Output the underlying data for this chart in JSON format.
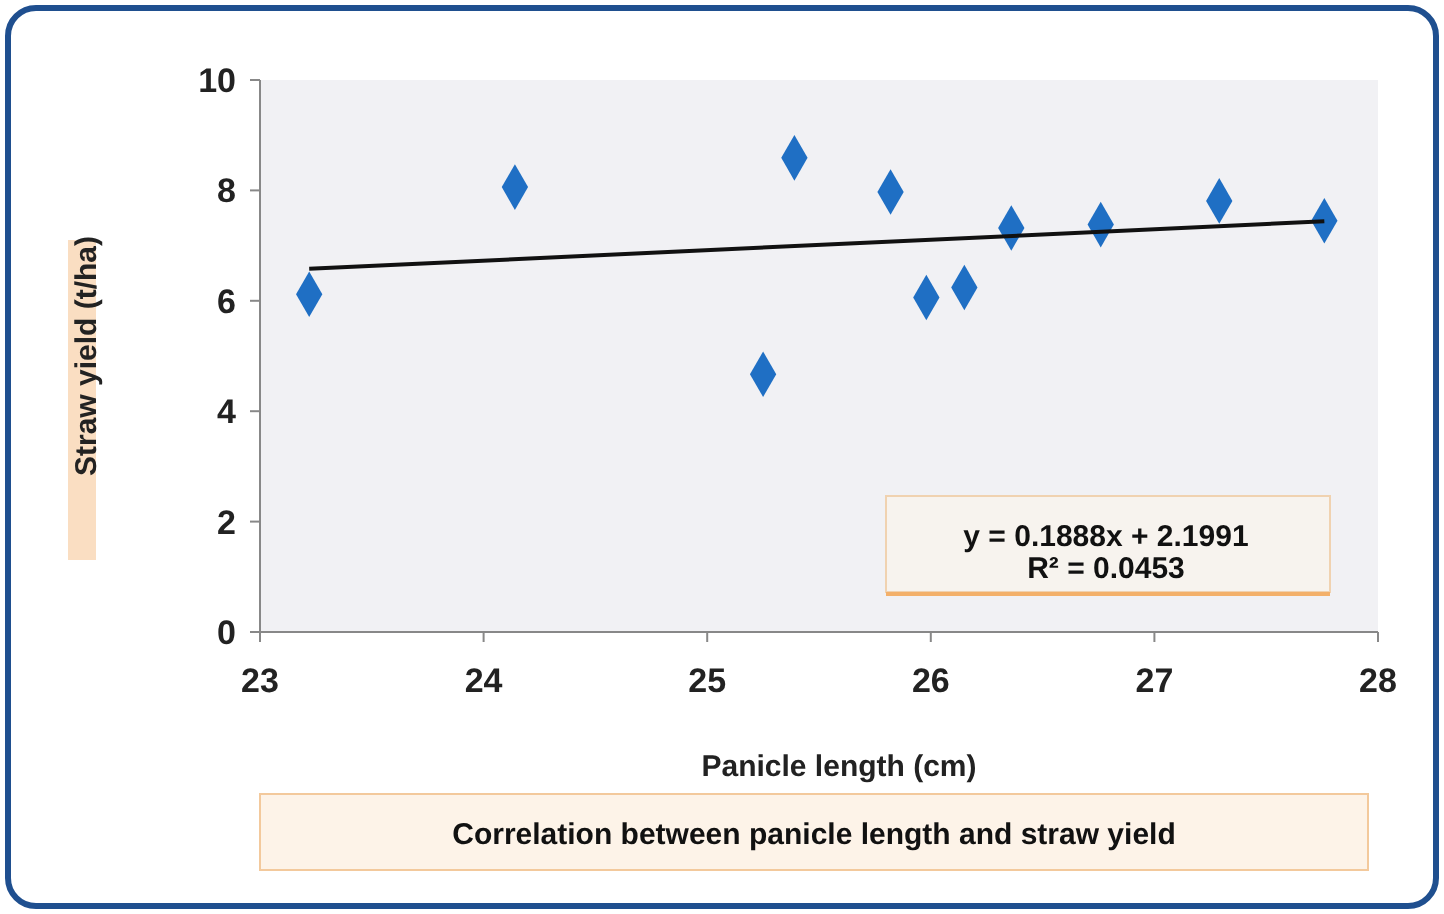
{
  "chart_data": {
    "type": "scatter",
    "xlabel": "Panicle length (cm)",
    "ylabel": "Straw yield (t/ha)",
    "xlim": [
      23,
      28
    ],
    "xticks": [
      23,
      24,
      25,
      26,
      27,
      28
    ],
    "ylim": [
      0,
      10
    ],
    "yticks": [
      0,
      2,
      4,
      6,
      8,
      10
    ],
    "grid": false,
    "marker": "diamond",
    "series": [
      {
        "color": "#1f6fc4",
        "x": [
          23.22,
          24.14,
          25.39,
          25.25,
          25.82,
          25.98,
          26.15,
          26.36,
          26.76,
          27.29,
          27.76
        ],
        "values": [
          6.12,
          8.06,
          8.59,
          4.67,
          7.97,
          6.06,
          6.24,
          7.32,
          7.38,
          7.81,
          7.45
        ]
      },
      {
        "type": "line",
        "color": "#111111",
        "marker": "none",
        "line_style": "solid",
        "x": [
          23.22,
          27.76
        ],
        "values": [
          6.58,
          7.44
        ]
      }
    ],
    "annotations": [
      "y = 0.1888x + 2.1991",
      "R² = 0.0453",
      "Correlation between panicle length and straw yield"
    ]
  }
}
